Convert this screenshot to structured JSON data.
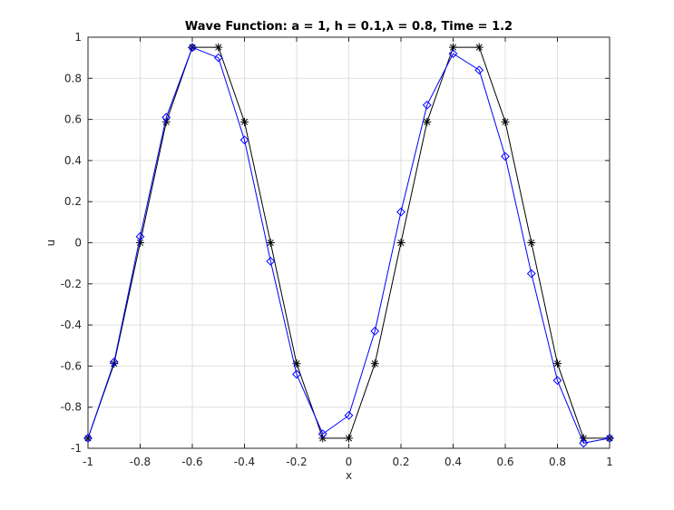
{
  "chart_data": {
    "type": "line",
    "title": "Wave Function: a = 1, h = 0.1,λ = 0.8, Time = 1.2",
    "xlabel": "x",
    "ylabel": "u",
    "xlim": [
      -1,
      1
    ],
    "ylim": [
      -1,
      1
    ],
    "grid": true,
    "x_ticks": [
      "-1",
      "-0.8",
      "-0.6",
      "-0.4",
      "-0.2",
      "0",
      "0.2",
      "0.4",
      "0.6",
      "0.8",
      "1"
    ],
    "x_tick_values": [
      -1,
      -0.8,
      -0.6,
      -0.4,
      -0.2,
      0,
      0.2,
      0.4,
      0.6,
      0.8,
      1
    ],
    "y_ticks": [
      "-1",
      "-0.8",
      "-0.6",
      "-0.4",
      "-0.2",
      "0",
      "0.2",
      "0.4",
      "0.6",
      "0.8",
      "1"
    ],
    "y_tick_values": [
      -1,
      -0.8,
      -0.6,
      -0.4,
      -0.2,
      0,
      0.2,
      0.4,
      0.6,
      0.8,
      1
    ],
    "x": [
      -1,
      -0.9,
      -0.8,
      -0.7,
      -0.6,
      -0.5,
      -0.4,
      -0.3,
      -0.2,
      -0.1,
      0,
      0.1,
      0.2,
      0.3,
      0.4,
      0.5,
      0.6,
      0.7,
      0.8,
      0.9,
      1
    ],
    "series": [
      {
        "marker": "asterisk",
        "color": "#000000",
        "values": [
          -0.951,
          -0.588,
          0.0,
          0.588,
          0.951,
          0.951,
          0.588,
          0.0,
          -0.588,
          -0.951,
          -0.951,
          -0.588,
          0.0,
          0.588,
          0.951,
          0.951,
          0.588,
          0.0,
          -0.588,
          -0.951,
          -0.951
        ]
      },
      {
        "marker": "diamond",
        "color": "#0000ff",
        "values": [
          -0.951,
          -0.58,
          0.03,
          0.61,
          0.95,
          0.9,
          0.5,
          -0.09,
          -0.64,
          -0.93,
          -0.84,
          -0.43,
          0.15,
          0.67,
          0.92,
          0.84,
          0.42,
          -0.15,
          -0.67,
          -0.975,
          -0.951
        ]
      }
    ]
  }
}
